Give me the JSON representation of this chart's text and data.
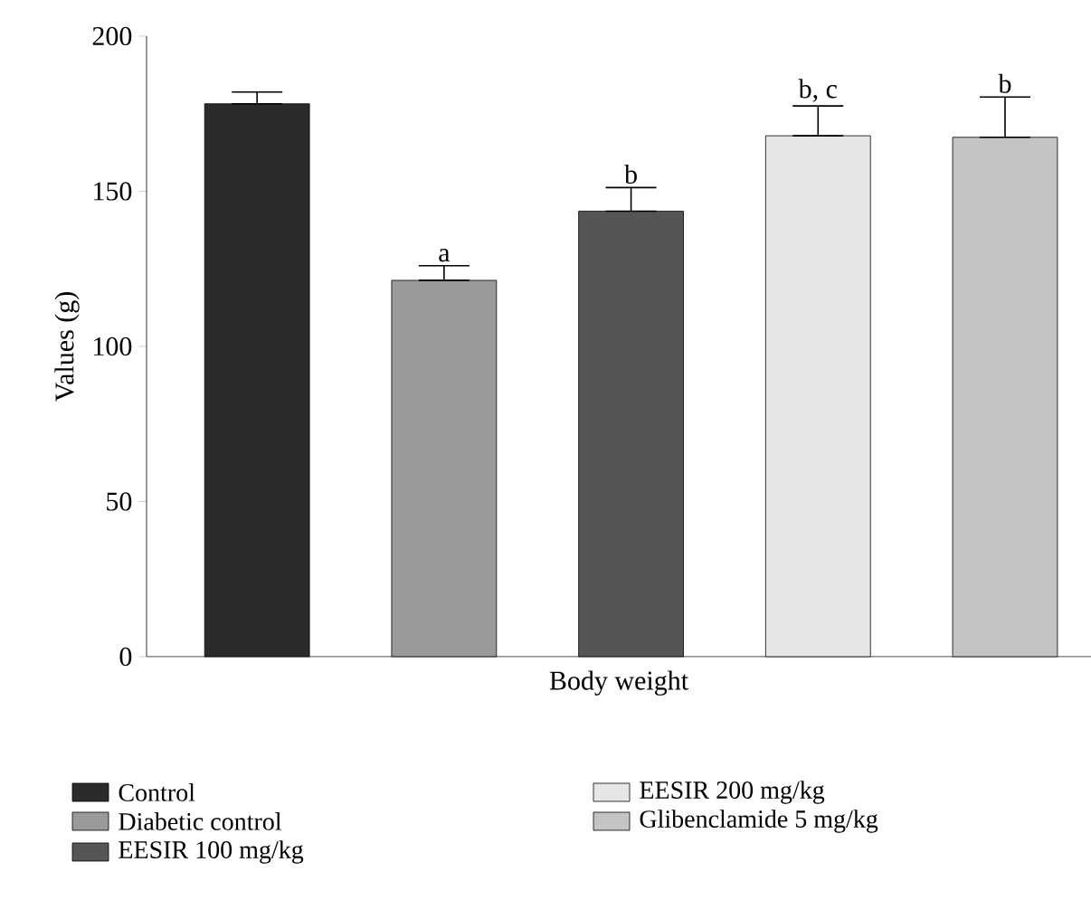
{
  "chart_data": {
    "type": "bar",
    "ylabel": "Values (g)",
    "categories": [
      "Body weight"
    ],
    "ylim": [
      0,
      200
    ],
    "yticks": [
      0,
      50,
      100,
      150,
      200
    ],
    "grid": false,
    "legend": "bottom",
    "series": [
      {
        "name": "Control",
        "color": "#2b2b2b",
        "values": [
          178.2
        ],
        "errors": [
          [
            178.2,
            182
          ]
        ],
        "value_labels": [
          null
        ]
      },
      {
        "name": "Diabetic control",
        "color": "#9a9a9a",
        "values": [
          121.3
        ],
        "errors": [
          [
            121.3,
            126
          ]
        ],
        "value_labels": [
          "a"
        ]
      },
      {
        "name": "EESIR 100 mg/kg",
        "color": "#555555",
        "values": [
          143.6
        ],
        "errors": [
          [
            143.6,
            151.2
          ]
        ],
        "value_labels": [
          "b"
        ]
      },
      {
        "name": "EESIR 200 mg/kg",
        "color": "#e6e6e6",
        "values": [
          167.9
        ],
        "errors": [
          [
            167.9,
            177.5
          ]
        ],
        "value_labels": [
          "b, c"
        ]
      },
      {
        "name": "Glibenclamide 5 mg/kg",
        "color": "#c4c4c4",
        "values": [
          167.4
        ],
        "errors": [
          [
            167.4,
            180.4
          ]
        ],
        "value_labels": [
          "b"
        ]
      }
    ]
  }
}
